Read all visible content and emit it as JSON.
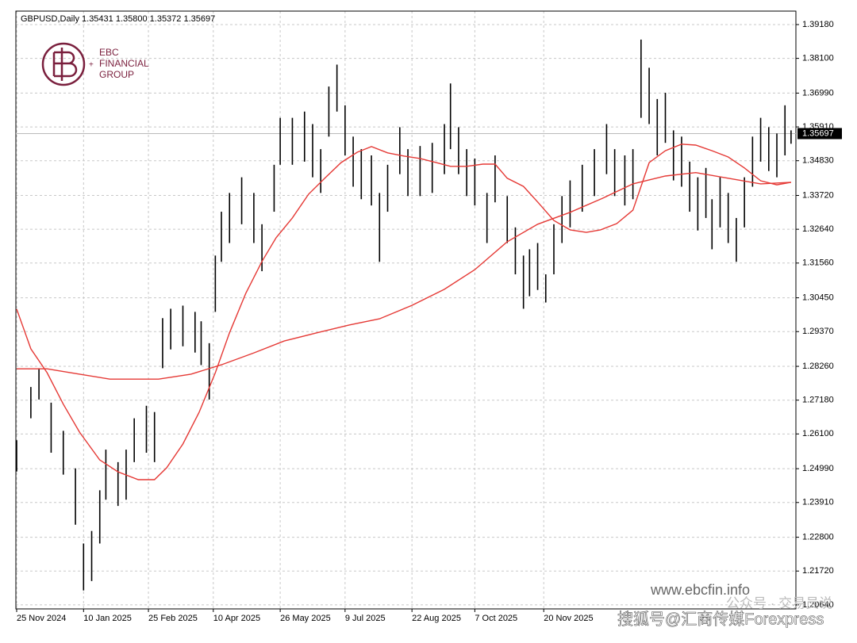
{
  "chart_data": {
    "type": "ohlc",
    "title": "GBPUSD,Daily  1.35431 1.35800 1.35372 1.35697",
    "logo": {
      "name": "EBC",
      "line1": "FINANCIAL",
      "line2": "GROUP"
    },
    "watermarks": [
      "www.ebcfin.info",
      "搜狐号@汇商传媒Forexpress",
      "公众号 · 交易员说"
    ],
    "color": "#000000",
    "grid": true,
    "xlim": [
      0,
      384
    ],
    "ylim": [
      1.2051,
      1.3961
    ],
    "xticks": [
      {
        "value": 0,
        "label": "25 Nov 2024"
      },
      {
        "value": 33,
        "label": "10 Jan 2025"
      },
      {
        "value": 65,
        "label": "25 Feb 2025"
      },
      {
        "value": 97,
        "label": "10 Apr 2025"
      },
      {
        "value": 130,
        "label": "26 May 2025"
      },
      {
        "value": 162,
        "label": "9 Jul 2025"
      },
      {
        "value": 195,
        "label": "22 Aug 2025"
      },
      {
        "value": 226,
        "label": "7 Oct 2025"
      },
      {
        "value": 260,
        "label": "20 Nov 2025"
      }
    ],
    "yticks": [
      {
        "value": 1.3918,
        "label": "1.39180"
      },
      {
        "value": 1.381,
        "label": "1.38100"
      },
      {
        "value": 1.3699,
        "label": "1.36990"
      },
      {
        "value": 1.3591,
        "label": "1.35910"
      },
      {
        "value": 1.3483,
        "label": "1.34830"
      },
      {
        "value": 1.3372,
        "label": "1.33720"
      },
      {
        "value": 1.3264,
        "label": "1.32640"
      },
      {
        "value": 1.3156,
        "label": "1.31560"
      },
      {
        "value": 1.3045,
        "label": "1.30450"
      },
      {
        "value": 1.2937,
        "label": "1.29370"
      },
      {
        "value": 1.2826,
        "label": "1.28260"
      },
      {
        "value": 1.2718,
        "label": "1.27180"
      },
      {
        "value": 1.261,
        "label": "1.26100"
      },
      {
        "value": 1.2499,
        "label": "1.24990"
      },
      {
        "value": 1.2391,
        "label": "1.23910"
      },
      {
        "value": 1.228,
        "label": "1.22800"
      },
      {
        "value": 1.2172,
        "label": "1.21720"
      },
      {
        "value": 1.2064,
        "label": "1.20640"
      }
    ],
    "last_price": 1.35697,
    "last_price_color": "#000000",
    "x": [
      0,
      7,
      11,
      17,
      23,
      29,
      33,
      37,
      41,
      44,
      50,
      54,
      58,
      64,
      68,
      72,
      76,
      82,
      88,
      91,
      95,
      98,
      101,
      105,
      111,
      117,
      121,
      127,
      130,
      136,
      142,
      146,
      150,
      154,
      158,
      162,
      166,
      170,
      175,
      179,
      183,
      189,
      193,
      199,
      205,
      211,
      214,
      218,
      222,
      226,
      232,
      236,
      242,
      246,
      250,
      253,
      257,
      261,
      265,
      269,
      273,
      279,
      285,
      291,
      295,
      300,
      304,
      308,
      312,
      316,
      320,
      324,
      328,
      332,
      336,
      340,
      343,
      347,
      351,
      355,
      359,
      363,
      367,
      371,
      375,
      379,
      382
    ],
    "high": [
      1.259,
      1.276,
      1.282,
      1.271,
      1.262,
      1.25,
      1.226,
      1.23,
      1.243,
      1.256,
      1.252,
      1.256,
      1.266,
      1.27,
      1.268,
      1.298,
      1.301,
      1.302,
      1.3,
      1.297,
      1.29,
      1.318,
      1.332,
      1.338,
      1.343,
      1.338,
      1.328,
      1.347,
      1.362,
      1.362,
      1.364,
      1.36,
      1.352,
      1.372,
      1.379,
      1.366,
      1.356,
      1.352,
      1.35,
      1.338,
      1.347,
      1.359,
      1.352,
      1.353,
      1.354,
      1.36,
      1.373,
      1.359,
      1.352,
      1.349,
      1.338,
      1.35,
      1.337,
      1.327,
      1.318,
      1.32,
      1.322,
      1.312,
      1.328,
      1.337,
      1.342,
      1.347,
      1.352,
      1.36,
      1.352,
      1.35,
      1.352,
      1.387,
      1.378,
      1.368,
      1.37,
      1.358,
      1.356,
      1.348,
      1.343,
      1.346,
      1.336,
      1.343,
      1.338,
      1.33,
      1.343,
      1.356,
      1.362,
      1.359,
      1.357,
      1.366,
      1.358
    ],
    "low": [
      1.249,
      1.266,
      1.272,
      1.255,
      1.248,
      1.232,
      1.211,
      1.214,
      1.226,
      1.24,
      1.238,
      1.24,
      1.252,
      1.255,
      1.252,
      1.282,
      1.288,
      1.289,
      1.287,
      1.283,
      1.272,
      1.3,
      1.316,
      1.322,
      1.328,
      1.322,
      1.313,
      1.332,
      1.347,
      1.347,
      1.348,
      1.343,
      1.338,
      1.356,
      1.364,
      1.35,
      1.34,
      1.336,
      1.334,
      1.316,
      1.332,
      1.344,
      1.337,
      1.337,
      1.338,
      1.344,
      1.352,
      1.344,
      1.337,
      1.334,
      1.322,
      1.335,
      1.322,
      1.312,
      1.301,
      1.305,
      1.307,
      1.303,
      1.312,
      1.322,
      1.327,
      1.332,
      1.337,
      1.344,
      1.337,
      1.334,
      1.336,
      1.362,
      1.36,
      1.35,
      1.354,
      1.342,
      1.34,
      1.332,
      1.326,
      1.33,
      1.32,
      1.327,
      1.322,
      1.316,
      1.327,
      1.34,
      1.348,
      1.345,
      1.343,
      1.35,
      1.35372
    ],
    "overlays": [
      {
        "color": "#e53935",
        "x": [
          0,
          7,
          15,
          23,
          31,
          41,
          50,
          60,
          68,
          74,
          82,
          90,
          98,
          105,
          113,
          121,
          128,
          136,
          144,
          152,
          160,
          168,
          175,
          183,
          191,
          199,
          207,
          214,
          222,
          230,
          236,
          242,
          250,
          257,
          265,
          273,
          281,
          288,
          296,
          304,
          312,
          320,
          328,
          335,
          343,
          351,
          359,
          367,
          375,
          382
        ],
        "values": [
          1.3009,
          1.2882,
          1.2806,
          1.2705,
          1.2616,
          1.2527,
          1.2489,
          1.2464,
          1.2464,
          1.2502,
          1.2578,
          1.2679,
          1.2806,
          1.2933,
          1.3059,
          1.3161,
          1.3237,
          1.33,
          1.3376,
          1.3427,
          1.3477,
          1.351,
          1.3528,
          1.3508,
          1.3498,
          1.349,
          1.3477,
          1.3465,
          1.3465,
          1.3472,
          1.3472,
          1.3427,
          1.3401,
          1.3351,
          1.3292,
          1.3262,
          1.3254,
          1.3262,
          1.3282,
          1.3325,
          1.3477,
          1.3515,
          1.3536,
          1.3533,
          1.3515,
          1.3495,
          1.346,
          1.3419,
          1.3406,
          1.3414
        ]
      },
      {
        "color": "#e53935",
        "x": [
          0,
          15,
          31,
          46,
          70,
          86,
          101,
          117,
          132,
          148,
          164,
          179,
          195,
          211,
          226,
          242,
          257,
          273,
          289,
          304,
          320,
          335,
          351,
          367,
          382
        ],
        "values": [
          1.2818,
          1.2818,
          1.2801,
          1.2785,
          1.2785,
          1.2801,
          1.2831,
          1.2869,
          1.2907,
          1.2933,
          1.2958,
          1.2978,
          1.3021,
          1.3072,
          1.3135,
          1.3224,
          1.328,
          1.3318,
          1.3363,
          1.3409,
          1.3434,
          1.3445,
          1.3427,
          1.3409,
          1.3414
        ]
      }
    ]
  }
}
